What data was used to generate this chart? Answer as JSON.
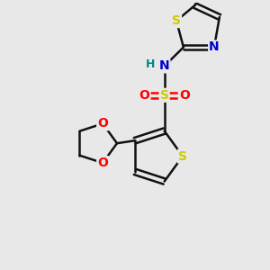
{
  "bg_color": "#e8e8e8",
  "atom_colors": {
    "S": "#cccc00",
    "O": "#ff0000",
    "N": "#0000cc",
    "C": "#111111",
    "H": "#008888"
  },
  "bond_color": "#111111",
  "figsize": [
    3.0,
    3.0
  ],
  "dpi": 100,
  "xlim": [
    0,
    10
  ],
  "ylim": [
    0,
    10
  ]
}
